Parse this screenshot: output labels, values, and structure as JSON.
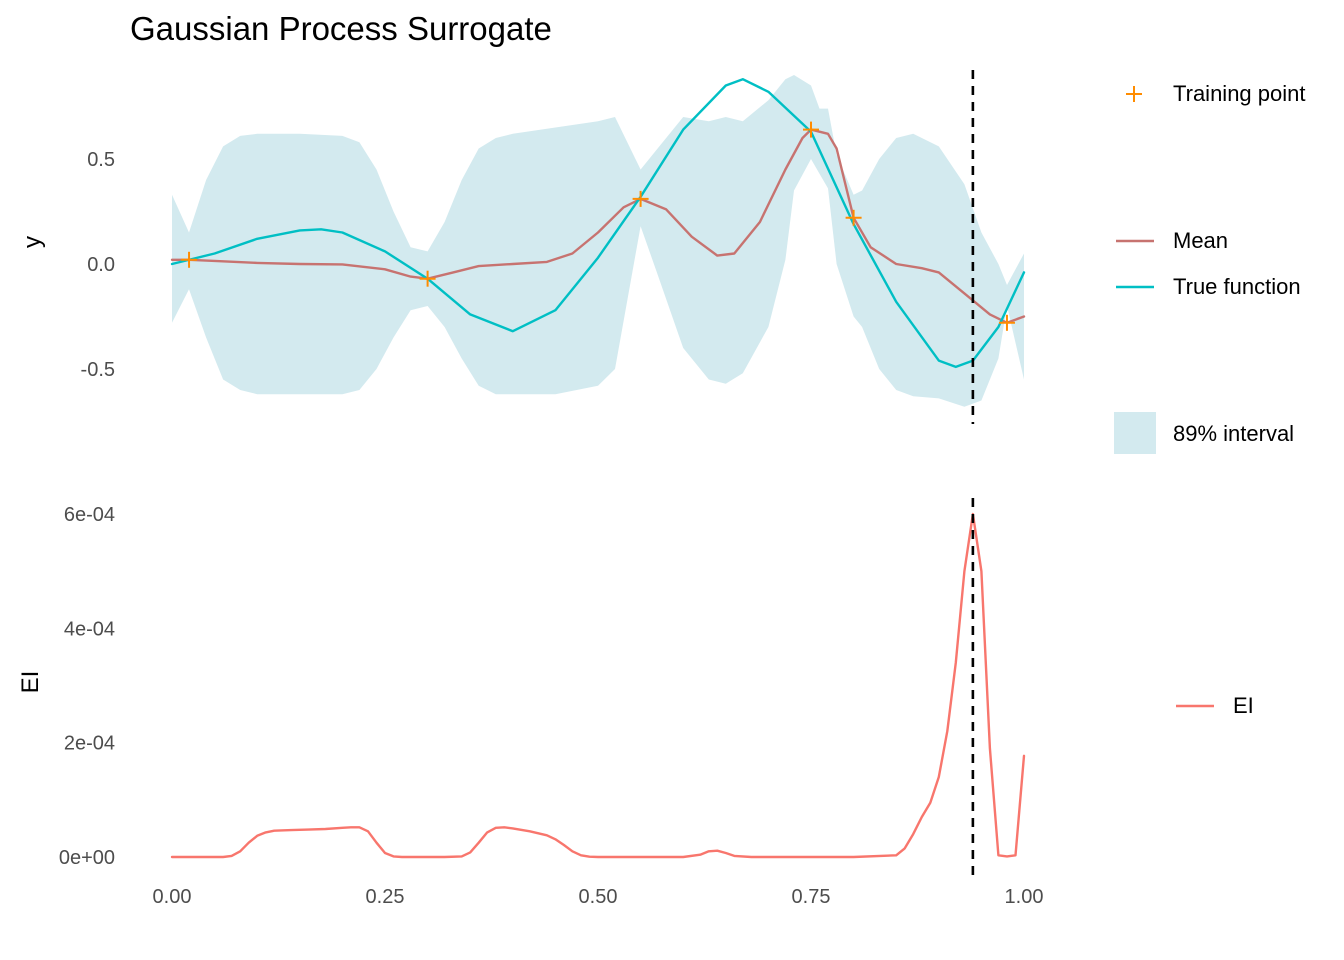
{
  "chart_data": [
    {
      "type": "line",
      "title": "Gaussian Process Surrogate",
      "xlabel": "",
      "ylabel": "y",
      "xlim": [
        0,
        1
      ],
      "ylim": [
        -0.75,
        0.9
      ],
      "yticks": [
        -0.5,
        0.0,
        0.5
      ],
      "ytick_labels": [
        "-0.5",
        "0.0",
        "0.5"
      ],
      "grid": false,
      "legend_position": "right",
      "vline_x": 0.94,
      "colors": {
        "interval": "#d3eaef",
        "mean": "#c77370",
        "true_function": "#00bfc4",
        "training_point": "#ff8c00",
        "vline": "#000000"
      },
      "legend": {
        "training_point": "Training point",
        "mean": "Mean",
        "true_function": "True function",
        "interval": "89% interval"
      },
      "training_points": {
        "x": [
          0.02,
          0.3,
          0.55,
          0.75,
          0.8,
          0.98
        ],
        "y": [
          0.02,
          -0.07,
          0.31,
          0.64,
          0.22,
          -0.28
        ]
      },
      "series": [
        {
          "name": "Mean",
          "x": [
            0.0,
            0.02,
            0.05,
            0.1,
            0.15,
            0.2,
            0.25,
            0.28,
            0.3,
            0.33,
            0.36,
            0.4,
            0.44,
            0.47,
            0.5,
            0.53,
            0.55,
            0.58,
            0.61,
            0.64,
            0.66,
            0.69,
            0.72,
            0.74,
            0.75,
            0.77,
            0.78,
            0.8,
            0.82,
            0.85,
            0.88,
            0.9,
            0.93,
            0.96,
            0.98,
            1.0
          ],
          "y": [
            0.02,
            0.02,
            0.015,
            0.005,
            0.0,
            -0.002,
            -0.025,
            -0.06,
            -0.07,
            -0.04,
            -0.01,
            0.0,
            0.01,
            0.05,
            0.15,
            0.27,
            0.31,
            0.26,
            0.13,
            0.04,
            0.05,
            0.2,
            0.45,
            0.6,
            0.64,
            0.62,
            0.55,
            0.22,
            0.08,
            0.0,
            -0.02,
            -0.04,
            -0.14,
            -0.24,
            -0.28,
            -0.25
          ]
        },
        {
          "name": "True function",
          "x": [
            0.0,
            0.05,
            0.1,
            0.15,
            0.175,
            0.2,
            0.25,
            0.3,
            0.35,
            0.4,
            0.45,
            0.5,
            0.55,
            0.6,
            0.65,
            0.67,
            0.7,
            0.75,
            0.8,
            0.85,
            0.9,
            0.92,
            0.94,
            0.97,
            1.0
          ],
          "y": [
            0.0,
            0.05,
            0.12,
            0.16,
            0.165,
            0.15,
            0.06,
            -0.07,
            -0.24,
            -0.32,
            -0.22,
            0.03,
            0.32,
            0.64,
            0.85,
            0.88,
            0.82,
            0.63,
            0.19,
            -0.18,
            -0.46,
            -0.49,
            -0.46,
            -0.3,
            -0.04
          ]
        }
      ],
      "interval": {
        "name": "89% interval",
        "x": [
          0.0,
          0.02,
          0.04,
          0.06,
          0.08,
          0.1,
          0.15,
          0.2,
          0.22,
          0.24,
          0.26,
          0.28,
          0.3,
          0.32,
          0.34,
          0.36,
          0.38,
          0.4,
          0.45,
          0.5,
          0.52,
          0.55,
          0.57,
          0.6,
          0.63,
          0.65,
          0.67,
          0.7,
          0.72,
          0.73,
          0.75,
          0.76,
          0.77,
          0.78,
          0.8,
          0.81,
          0.83,
          0.85,
          0.87,
          0.9,
          0.93,
          0.95,
          0.97,
          0.98,
          1.0
        ],
        "upper": [
          0.33,
          0.15,
          0.4,
          0.56,
          0.61,
          0.62,
          0.62,
          0.61,
          0.58,
          0.45,
          0.25,
          0.08,
          0.06,
          0.2,
          0.4,
          0.55,
          0.6,
          0.62,
          0.65,
          0.68,
          0.7,
          0.45,
          0.55,
          0.7,
          0.68,
          0.7,
          0.68,
          0.78,
          0.88,
          0.9,
          0.85,
          0.74,
          0.74,
          0.52,
          0.33,
          0.35,
          0.5,
          0.6,
          0.62,
          0.56,
          0.38,
          0.15,
          0.0,
          -0.1,
          0.05
        ],
        "lower": [
          -0.28,
          -0.12,
          -0.35,
          -0.55,
          -0.6,
          -0.62,
          -0.62,
          -0.62,
          -0.6,
          -0.5,
          -0.35,
          -0.22,
          -0.2,
          -0.3,
          -0.45,
          -0.58,
          -0.62,
          -0.62,
          -0.62,
          -0.58,
          -0.5,
          0.18,
          -0.05,
          -0.4,
          -0.55,
          -0.57,
          -0.52,
          -0.3,
          0.02,
          0.35,
          0.5,
          0.43,
          0.36,
          0.0,
          -0.25,
          -0.3,
          -0.5,
          -0.6,
          -0.63,
          -0.64,
          -0.68,
          -0.65,
          -0.45,
          -0.2,
          -0.55
        ]
      }
    },
    {
      "type": "line",
      "title": "",
      "xlabel": "",
      "ylabel": "EI",
      "xlim": [
        0,
        1
      ],
      "xticks": [
        0.0,
        0.25,
        0.5,
        0.75,
        1.0
      ],
      "xtick_labels": [
        "0.00",
        "0.25",
        "0.50",
        "0.75",
        "1.00"
      ],
      "ylim": [
        -3e-05,
        0.00063
      ],
      "yticks": [
        0,
        0.0002,
        0.0004,
        0.0006
      ],
      "ytick_labels": [
        "0e+00",
        "2e-04",
        "4e-04",
        "6e-04"
      ],
      "grid": false,
      "legend_position": "right",
      "vline_x": 0.94,
      "colors": {
        "ei": "#f8766d",
        "vline": "#000000"
      },
      "legend": {
        "ei": "EI"
      },
      "series": [
        {
          "name": "EI",
          "x": [
            0.0,
            0.02,
            0.04,
            0.06,
            0.07,
            0.08,
            0.09,
            0.1,
            0.11,
            0.12,
            0.14,
            0.16,
            0.18,
            0.2,
            0.21,
            0.22,
            0.23,
            0.24,
            0.25,
            0.26,
            0.27,
            0.3,
            0.32,
            0.34,
            0.35,
            0.36,
            0.37,
            0.38,
            0.39,
            0.4,
            0.42,
            0.44,
            0.45,
            0.46,
            0.47,
            0.48,
            0.49,
            0.5,
            0.55,
            0.6,
            0.62,
            0.63,
            0.64,
            0.65,
            0.66,
            0.68,
            0.7,
            0.75,
            0.8,
            0.85,
            0.86,
            0.87,
            0.88,
            0.89,
            0.9,
            0.91,
            0.92,
            0.93,
            0.94,
            0.95,
            0.96,
            0.97,
            0.98,
            0.99,
            1.0
          ],
          "y": [
            0.0,
            0.0,
            0.0,
            0.0,
            2e-06,
            1e-05,
            2.5e-05,
            3.7e-05,
            4.3e-05,
            4.6e-05,
            4.7e-05,
            4.8e-05,
            4.9e-05,
            5.1e-05,
            5.2e-05,
            5.2e-05,
            4.5e-05,
            2.5e-05,
            7e-06,
            1e-06,
            0.0,
            0.0,
            0.0,
            1e-06,
            8e-06,
            2.5e-05,
            4.3e-05,
            5.1e-05,
            5.2e-05,
            5e-05,
            4.5e-05,
            3.8e-05,
            3.1e-05,
            2.1e-05,
            1e-05,
            3e-06,
            5e-07,
            0.0,
            0.0,
            0.0,
            4e-06,
            1e-05,
            1.1e-05,
            7e-06,
            2e-06,
            0.0,
            0.0,
            0.0,
            0.0,
            3e-06,
            1.5e-05,
            4e-05,
            7e-05,
            9.5e-05,
            0.00014,
            0.00022,
            0.00034,
            0.0005,
            0.0006,
            0.0005,
            0.00019,
            3e-06,
            1e-06,
            3e-06,
            0.000177
          ]
        }
      ]
    }
  ]
}
